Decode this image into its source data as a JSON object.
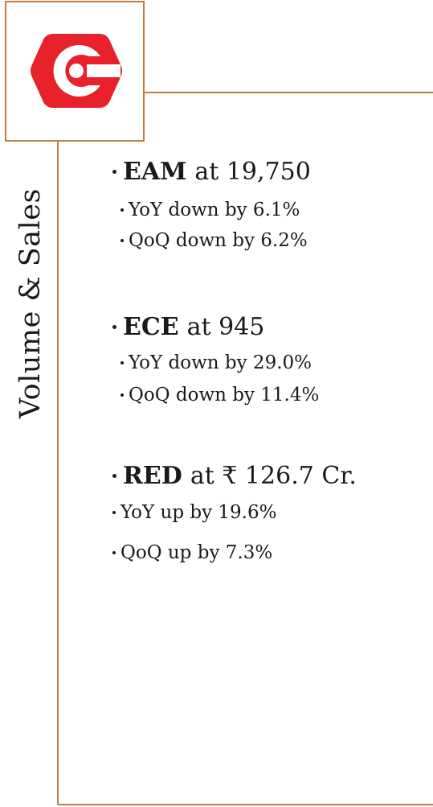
{
  "sidebar_title": "Volume & Sales",
  "sections": [
    {
      "name": "EAM",
      "text": "at 19,750",
      "items": [
        "YoY down by 6.1%",
        "QoQ down by 6.2%"
      ]
    },
    {
      "name": "ECE",
      "text": "at 945",
      "items": [
        "YoY down by 29.0%",
        "QoQ down by 11.4%"
      ]
    },
    {
      "name": "RED",
      "text": "at ₹ 126.7 Cr.",
      "items": [
        "YoY up by 19.6%",
        "QoQ up by 7.3%"
      ]
    }
  ]
}
